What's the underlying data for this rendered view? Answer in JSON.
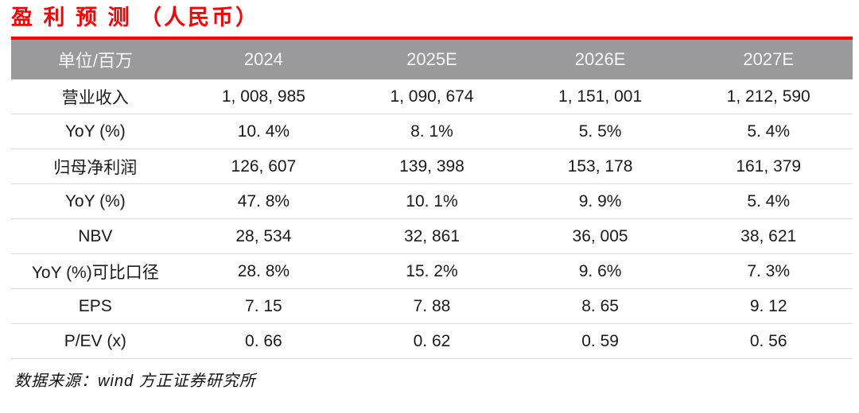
{
  "title": "盈 利 预 测 （人民币）",
  "table": {
    "columns": [
      "单位/百万",
      "2024",
      "2025E",
      "2026E",
      "2027E"
    ],
    "rows": [
      {
        "label": "营业收入",
        "values": [
          "1, 008, 985",
          "1, 090, 674",
          "1, 151, 001",
          "1, 212, 590"
        ]
      },
      {
        "label": "YoY (%)",
        "values": [
          "10. 4%",
          "8. 1%",
          "5. 5%",
          "5. 4%"
        ]
      },
      {
        "label": "归母净利润",
        "values": [
          "126, 607",
          "139, 398",
          "153, 178",
          "161, 379"
        ]
      },
      {
        "label": "YoY (%)",
        "values": [
          "47. 8%",
          "10. 1%",
          "9. 9%",
          "5. 4%"
        ]
      },
      {
        "label": "NBV",
        "values": [
          "28, 534",
          "32, 861",
          "36, 005",
          "38, 621"
        ]
      },
      {
        "label": "YoY (%)可比口径",
        "values": [
          "28. 8%",
          "15. 2%",
          "9. 6%",
          "7. 3%"
        ]
      },
      {
        "label": "EPS",
        "values": [
          "7. 15",
          "7. 88",
          "8. 65",
          "9. 12"
        ]
      },
      {
        "label": "P/EV (x)",
        "values": [
          "0. 66",
          "0. 62",
          "0. 59",
          "0. 56"
        ]
      }
    ]
  },
  "footer": {
    "source": "数据来源：wind 方正证券研究所"
  },
  "colors": {
    "accent_red": "#FF0000",
    "header_bg": "#9A9A9A",
    "header_text": "#F5F5F5",
    "row_border": "#D9D9D9",
    "body_text": "#1A1A1A"
  }
}
